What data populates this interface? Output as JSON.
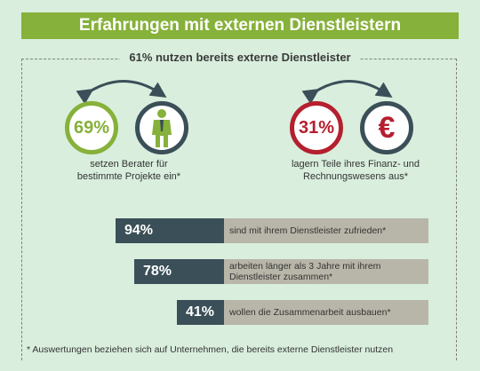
{
  "title": "Erfahrungen mit externen Dienstleistern",
  "subtitle": "61% nutzen bereits externe Dienstleister",
  "colors": {
    "green": "#86b13a",
    "red": "#b51f2e",
    "dark": "#3a4f58",
    "gray": "#b8b6a9"
  },
  "chart_data": [
    {
      "type": "other",
      "items": [
        {
          "value": "69%",
          "description": "setzen Berater für bestimmte Projekte ein*",
          "icon": "businessman-icon"
        },
        {
          "value": "31%",
          "description": "lagern Teile ihres Finanz- und Rechnungswesens aus*",
          "icon": "euro-icon"
        }
      ]
    },
    {
      "type": "bar",
      "orientation": "horizontal",
      "categories": [
        "sind mit ihrem Dienstleister zufrieden*",
        "arbeiten länger als 3 Jahre mit ihrem Dienstleister zusammen*",
        "wollen die Zusammenarbeit ausbauen*"
      ],
      "values": [
        94,
        78,
        41
      ],
      "labels": [
        "94%",
        "78%",
        "41%"
      ]
    }
  ],
  "circles": {
    "left_value": "69%",
    "left_desc_1": "setzen Berater für",
    "left_desc_2": "bestimmte Projekte ein*",
    "right_value": "31%",
    "right_desc_1": "lagern Teile ihres Finanz- und",
    "right_desc_2": "Rechnungswesens aus*",
    "right_icon_glyph": "€"
  },
  "bars": [
    {
      "label": "94%",
      "text_1": "sind mit ihrem Dienstleister zufrieden*",
      "text_2": ""
    },
    {
      "label": "78%",
      "text_1": "arbeiten länger als 3 Jahre mit ihrem",
      "text_2": "Dienstleister zusammen*"
    },
    {
      "label": "41%",
      "text_1": "wollen die Zusammenarbeit ausbauen*",
      "text_2": ""
    }
  ],
  "footnote": "* Auswertungen beziehen sich auf Unternehmen, die bereits externe Dienstleister nutzen"
}
